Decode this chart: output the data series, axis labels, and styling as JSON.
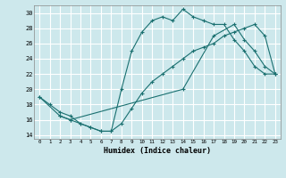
{
  "xlabel": "Humidex (Indice chaleur)",
  "bg_color": "#cde8ec",
  "grid_color": "#ffffff",
  "line_color": "#1a7070",
  "xlim": [
    -0.5,
    23.5
  ],
  "ylim": [
    13.5,
    31
  ],
  "xticks": [
    0,
    1,
    2,
    3,
    4,
    5,
    6,
    7,
    8,
    9,
    10,
    11,
    12,
    13,
    14,
    15,
    16,
    17,
    18,
    19,
    20,
    21,
    22,
    23
  ],
  "yticks": [
    14,
    16,
    18,
    20,
    22,
    24,
    26,
    28,
    30
  ],
  "curve1_x": [
    0,
    1,
    2,
    3,
    4,
    5,
    6,
    7,
    8,
    9,
    10,
    11,
    12,
    13,
    14,
    15,
    16,
    17,
    18,
    19,
    20,
    21,
    22,
    23
  ],
  "curve1_y": [
    19,
    18,
    17,
    16.5,
    15.5,
    15,
    14.5,
    14.5,
    20,
    25,
    27.5,
    29,
    29.5,
    29,
    30.5,
    29.5,
    29,
    28.5,
    28.5,
    26.5,
    25,
    23,
    22,
    22
  ],
  "curve2_x": [
    0,
    2,
    3,
    14,
    17,
    19,
    20,
    21,
    22,
    23
  ],
  "curve2_y": [
    19,
    16.5,
    16,
    20,
    27,
    28.5,
    26.5,
    25,
    23,
    22
  ],
  "curve3_x": [
    2,
    3,
    4,
    5,
    6,
    7,
    8,
    9,
    10,
    11,
    12,
    13,
    14,
    15,
    16,
    17,
    18,
    19,
    20,
    21,
    22,
    23
  ],
  "curve3_y": [
    16.5,
    16,
    15.5,
    15,
    14.5,
    14.5,
    15.5,
    17.5,
    19.5,
    21,
    22,
    23,
    24,
    25,
    25.5,
    26,
    27,
    27.5,
    28,
    28.5,
    27,
    22
  ]
}
